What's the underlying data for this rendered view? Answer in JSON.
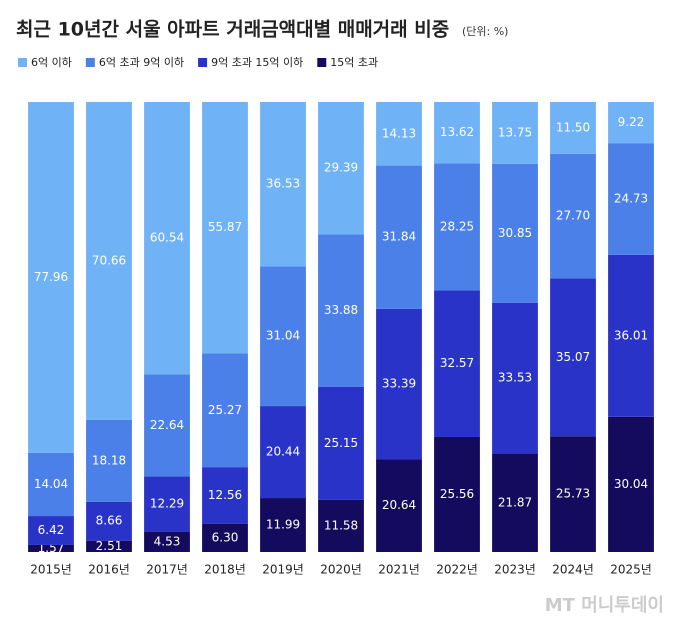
{
  "chart_data": {
    "type": "stacked-bar",
    "title": "최근 10년간 서울 아파트 거래금액대별 매매거래 비중",
    "subtitle": "(단위: %)",
    "watermark": "MT 머니투데이",
    "categories": [
      "2015년",
      "2016년",
      "2017년",
      "2018년",
      "2019년",
      "2020년",
      "2021년",
      "2022년",
      "2023년",
      "2024년",
      "2025년"
    ],
    "ylim": [
      0,
      100
    ],
    "series": [
      {
        "name": "6억 이하",
        "color": "#6fb3f6",
        "values": [
          77.96,
          70.66,
          60.54,
          55.87,
          36.53,
          29.39,
          14.13,
          13.62,
          13.75,
          11.5,
          9.22
        ],
        "value_labels": [
          "77.96",
          "70.66",
          "60.54",
          "55.87",
          "36.53",
          "29.39",
          "14.13",
          "13.62",
          "13.75",
          "11.50",
          "9.22"
        ]
      },
      {
        "name": "6억 초과 9억 이하",
        "color": "#4a80e8",
        "values": [
          14.04,
          18.18,
          22.64,
          25.27,
          31.04,
          33.88,
          31.84,
          28.25,
          30.85,
          27.7,
          24.73
        ],
        "value_labels": [
          "14.04",
          "18.18",
          "22.64",
          "25.27",
          "31.04",
          "33.88",
          "31.84",
          "28.25",
          "30.85",
          "27.70",
          "24.73"
        ]
      },
      {
        "name": "9억 초과 15억 이하",
        "color": "#2a33c8",
        "values": [
          6.42,
          8.66,
          12.29,
          12.56,
          20.44,
          25.15,
          33.39,
          32.57,
          33.53,
          35.07,
          36.01
        ],
        "value_labels": [
          "6.42",
          "8.66",
          "12.29",
          "12.56",
          "20.44",
          "25.15",
          "33.39",
          "32.57",
          "33.53",
          "35.07",
          "36.01"
        ]
      },
      {
        "name": "15억 초과",
        "color": "#150b5e",
        "values": [
          1.57,
          2.51,
          4.53,
          6.3,
          11.99,
          11.58,
          20.64,
          25.56,
          21.87,
          25.73,
          30.04
        ],
        "value_labels": [
          "1.57",
          "2.51",
          "4.53",
          "6.30",
          "11.99",
          "11.58",
          "20.64",
          "25.56",
          "21.87",
          "25.73",
          "30.04"
        ]
      }
    ]
  }
}
